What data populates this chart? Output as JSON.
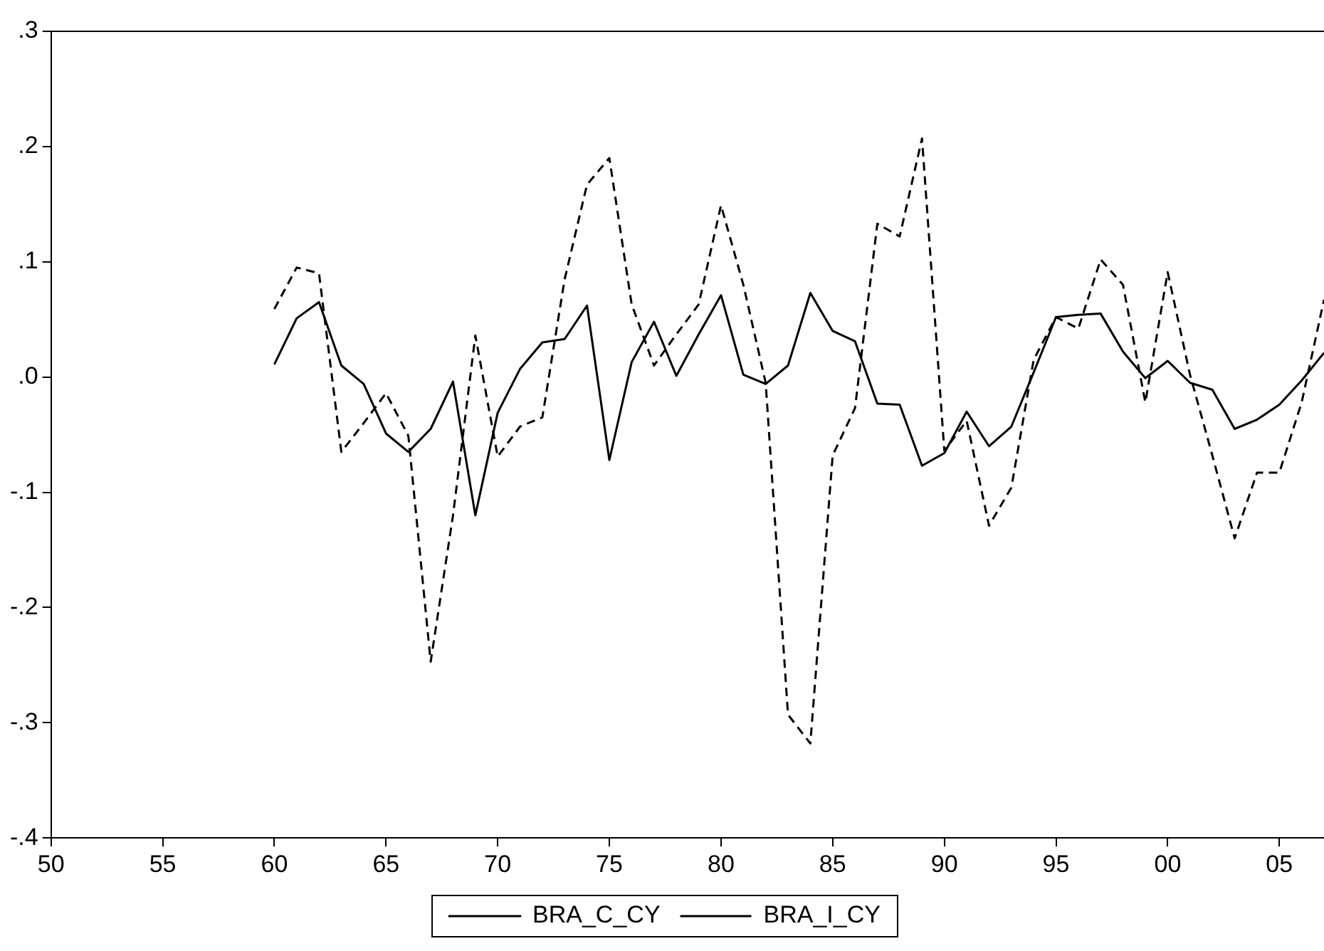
{
  "chart_data": {
    "type": "line",
    "x": [
      1960,
      1961,
      1962,
      1963,
      1964,
      1965,
      1966,
      1967,
      1968,
      1969,
      1970,
      1971,
      1972,
      1973,
      1974,
      1975,
      1976,
      1977,
      1978,
      1979,
      1980,
      1981,
      1982,
      1983,
      1984,
      1985,
      1986,
      1987,
      1988,
      1989,
      1990,
      1991,
      1992,
      1993,
      1994,
      1995,
      1996,
      1997,
      1998,
      1999,
      2000,
      2001,
      2002,
      2003,
      2004,
      2005,
      2006,
      2007
    ],
    "series": [
      {
        "name": "BRA_C_CY",
        "color": "#000000",
        "line_style": "solid",
        "values": [
          0.011,
          0.051,
          0.065,
          0.01,
          -0.006,
          -0.049,
          -0.065,
          -0.045,
          -0.004,
          -0.12,
          -0.031,
          0.007,
          0.03,
          0.033,
          0.062,
          -0.072,
          0.013,
          0.048,
          0.001,
          0.037,
          0.071,
          0.002,
          -0.006,
          0.01,
          0.073,
          0.04,
          0.031,
          -0.023,
          -0.024,
          -0.077,
          -0.066,
          -0.03,
          -0.06,
          -0.043,
          0.004,
          0.052,
          0.054,
          0.055,
          0.022,
          -0.001,
          0.014,
          -0.005,
          -0.011,
          -0.045,
          -0.037,
          -0.024,
          -0.003,
          0.021
        ]
      },
      {
        "name": "BRA_I_CY",
        "color": "#000000",
        "line_style": "dashed",
        "values": [
          0.059,
          0.095,
          0.09,
          -0.065,
          -0.04,
          -0.014,
          -0.051,
          -0.247,
          -0.12,
          0.036,
          -0.069,
          -0.043,
          -0.035,
          0.085,
          0.167,
          0.19,
          0.063,
          0.01,
          0.037,
          0.063,
          0.149,
          0.08,
          -0.005,
          -0.293,
          -0.318,
          -0.068,
          -0.027,
          0.133,
          0.122,
          0.207,
          -0.064,
          -0.038,
          -0.129,
          -0.096,
          0.015,
          0.052,
          0.042,
          0.102,
          0.08,
          -0.022,
          0.091,
          0.002,
          -0.068,
          -0.14,
          -0.083,
          -0.083,
          -0.022,
          0.067
        ]
      }
    ],
    "xlim": [
      1950,
      2007
    ],
    "xticks": [
      {
        "value": 1950,
        "label": "50"
      },
      {
        "value": 1955,
        "label": "55"
      },
      {
        "value": 1960,
        "label": "60"
      },
      {
        "value": 1965,
        "label": "65"
      },
      {
        "value": 1970,
        "label": "70"
      },
      {
        "value": 1975,
        "label": "75"
      },
      {
        "value": 1980,
        "label": "80"
      },
      {
        "value": 1985,
        "label": "85"
      },
      {
        "value": 1990,
        "label": "90"
      },
      {
        "value": 1995,
        "label": "95"
      },
      {
        "value": 2000,
        "label": "00"
      },
      {
        "value": 2005,
        "label": "05"
      }
    ],
    "ylim": [
      -0.4,
      0.3
    ],
    "yticks": [
      {
        "value": -0.4,
        "label": "-.4"
      },
      {
        "value": -0.3,
        "label": "-.3"
      },
      {
        "value": -0.2,
        "label": "-.2"
      },
      {
        "value": -0.1,
        "label": "-.1"
      },
      {
        "value": 0,
        "label": ".0"
      },
      {
        "value": 0.1,
        "label": ".1"
      },
      {
        "value": 0.2,
        "label": ".2"
      },
      {
        "value": 0.3,
        "label": ".3"
      }
    ],
    "grid": false,
    "legend": "bottom",
    "marker": "none"
  }
}
